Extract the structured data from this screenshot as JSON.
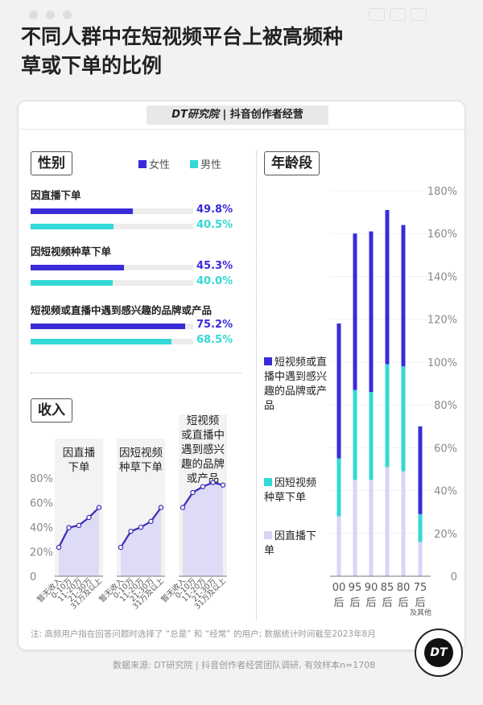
{
  "title": "不同人群中在短视频平台上被高频种草或下单的比例",
  "header": {
    "brand": "DT研究院",
    "separator": "|",
    "subtitle": "抖音创作者经营"
  },
  "colors": {
    "female": "#3a2bd8",
    "male": "#33d9d6",
    "interest": "#3a2bd8",
    "short_video": "#33d9d6",
    "live": "#d7d4f5"
  },
  "chart_data": [
    {
      "type": "bar",
      "orientation": "horizontal",
      "title": "性别",
      "legend": [
        "女性",
        "男性"
      ],
      "categories": [
        "因直播下单",
        "因短视频种草下单",
        "短视频或直播中遇到感兴趣的品牌或产品"
      ],
      "series": [
        {
          "name": "女性",
          "values": [
            49.8,
            45.3,
            75.2
          ]
        },
        {
          "name": "男性",
          "values": [
            40.5,
            40.0,
            68.5
          ]
        }
      ],
      "labels": [
        [
          "49.8%",
          "40.5%"
        ],
        [
          "45.3%",
          "40.0%"
        ],
        [
          "75.2%",
          "68.5%"
        ]
      ]
    },
    {
      "type": "area",
      "title": "收入",
      "yticks": [
        "0",
        "20%",
        "40%",
        "60%",
        "80%"
      ],
      "ylim": [
        0,
        80
      ],
      "categories": [
        "暂无收入",
        "0-10万",
        "11-20万",
        "21-30万",
        "31万及以上"
      ],
      "panels": [
        {
          "name": "因直播下单",
          "values": [
            23.5,
            39.6,
            41.4,
            47.9,
            56
          ]
        },
        {
          "name": "因短视频种草下单",
          "values": [
            23.5,
            36.6,
            39.9,
            44.7,
            56
          ]
        },
        {
          "name": "短视频或直播中遇到感兴趣的品牌或产品",
          "values": [
            56,
            68.2,
            73,
            76.3,
            74.3
          ]
        }
      ]
    },
    {
      "type": "bar",
      "stacked": true,
      "title": "年龄段",
      "ylim": [
        0,
        180
      ],
      "yticks": [
        "0",
        "20%",
        "40%",
        "60%",
        "80%",
        "100%",
        "120%",
        "140%",
        "160%",
        "180%"
      ],
      "categories": [
        [
          "00",
          "后"
        ],
        [
          "95",
          "后"
        ],
        [
          "90",
          "后"
        ],
        [
          "85",
          "后"
        ],
        [
          "80",
          "后"
        ],
        [
          "75",
          "后"
        ]
      ],
      "last_category_note": "及其他",
      "series": [
        {
          "name": "因直播下单",
          "values": [
            28,
            45,
            45,
            51,
            49,
            16
          ]
        },
        {
          "name": "因短视频种草下单",
          "values": [
            27,
            42,
            41,
            48,
            49,
            13
          ]
        },
        {
          "name": "短视频或直播中遇到感兴趣的品牌或产品",
          "values": [
            63,
            73,
            75,
            72,
            66,
            41
          ]
        }
      ]
    }
  ],
  "footer": {
    "note": "注: 高频用户指在回答问题时选择了 “总是” 和 “经常” 的用户; 数据统计时间截至2023年8月",
    "source": "数据来源: DT研究院  |  抖音创作者经营团队调研, 有效样本n=1708",
    "logo": "DT"
  }
}
